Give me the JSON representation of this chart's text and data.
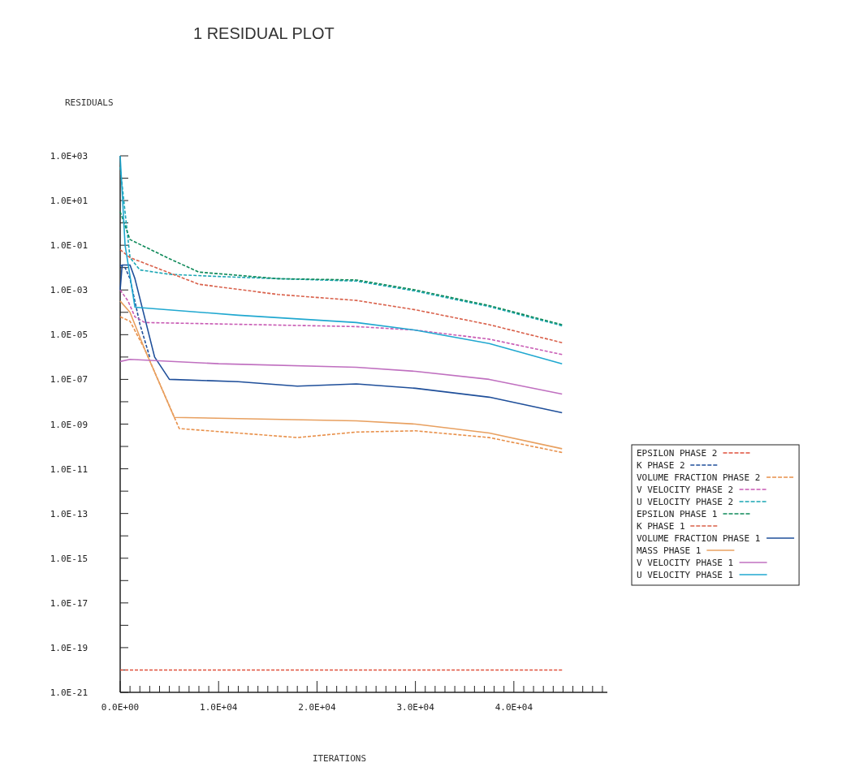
{
  "chart_data": {
    "type": "line",
    "title": "1 RESIDUAL PLOT",
    "xlabel": "ITERATIONS",
    "ylabel": "RESIDUALS",
    "log": "y",
    "legend": "right",
    "marker": "none",
    "grid": false,
    "xlim": [
      0,
      49500
    ],
    "xticks": [
      {
        "value": 0,
        "label": "0.0E+00"
      },
      {
        "value": 1000,
        "label": null
      },
      {
        "value": 2000,
        "label": null
      },
      {
        "value": 3000,
        "label": null
      },
      {
        "value": 4000,
        "label": null
      },
      {
        "value": 5000,
        "label": null
      },
      {
        "value": 6000,
        "label": null
      },
      {
        "value": 7000,
        "label": null
      },
      {
        "value": 8000,
        "label": null
      },
      {
        "value": 9000,
        "label": null
      },
      {
        "value": 10000,
        "label": "1.0E+04"
      },
      {
        "value": 11000,
        "label": null
      },
      {
        "value": 12000,
        "label": null
      },
      {
        "value": 13000,
        "label": null
      },
      {
        "value": 14000,
        "label": null
      },
      {
        "value": 15000,
        "label": null
      },
      {
        "value": 16000,
        "label": null
      },
      {
        "value": 17000,
        "label": null
      },
      {
        "value": 18000,
        "label": null
      },
      {
        "value": 19000,
        "label": null
      },
      {
        "value": 20000,
        "label": "2.0E+04"
      },
      {
        "value": 21000,
        "label": null
      },
      {
        "value": 22000,
        "label": null
      },
      {
        "value": 23000,
        "label": null
      },
      {
        "value": 24000,
        "label": null
      },
      {
        "value": 25000,
        "label": null
      },
      {
        "value": 26000,
        "label": null
      },
      {
        "value": 27000,
        "label": null
      },
      {
        "value": 28000,
        "label": null
      },
      {
        "value": 29000,
        "label": null
      },
      {
        "value": 30000,
        "label": "3.0E+04"
      },
      {
        "value": 31000,
        "label": null
      },
      {
        "value": 32000,
        "label": null
      },
      {
        "value": 33000,
        "label": null
      },
      {
        "value": 34000,
        "label": null
      },
      {
        "value": 35000,
        "label": null
      },
      {
        "value": 36000,
        "label": null
      },
      {
        "value": 37000,
        "label": null
      },
      {
        "value": 38000,
        "label": null
      },
      {
        "value": 39000,
        "label": null
      },
      {
        "value": 40000,
        "label": "4.0E+04"
      },
      {
        "value": 41000,
        "label": null
      },
      {
        "value": 42000,
        "label": null
      },
      {
        "value": 43000,
        "label": null
      },
      {
        "value": 44000,
        "label": null
      },
      {
        "value": 45000,
        "label": null
      },
      {
        "value": 46000,
        "label": null
      },
      {
        "value": 47000,
        "label": null
      },
      {
        "value": 48000,
        "label": null
      },
      {
        "value": 49000,
        "label": null
      }
    ],
    "ylim": [
      1e-21,
      1000
    ],
    "yticks": [
      {
        "value": 1e-21,
        "label": "1.0E-21"
      },
      {
        "value": 1e-20,
        "label": null
      },
      {
        "value": 1e-19,
        "label": "1.0E-19"
      },
      {
        "value": 1e-18,
        "label": null
      },
      {
        "value": 1e-17,
        "label": "1.0E-17"
      },
      {
        "value": 1e-16,
        "label": null
      },
      {
        "value": 1e-15,
        "label": "1.0E-15"
      },
      {
        "value": 1e-14,
        "label": null
      },
      {
        "value": 1e-13,
        "label": "1.0E-13"
      },
      {
        "value": 1e-12,
        "label": null
      },
      {
        "value": 1e-11,
        "label": "1.0E-11"
      },
      {
        "value": 1e-10,
        "label": null
      },
      {
        "value": 1e-09,
        "label": "1.0E-09"
      },
      {
        "value": 1e-08,
        "label": null
      },
      {
        "value": 1e-07,
        "label": "1.0E-07"
      },
      {
        "value": 1e-06,
        "label": null
      },
      {
        "value": 1e-05,
        "label": "1.0E-05"
      },
      {
        "value": 0.0001,
        "label": null
      },
      {
        "value": 0.001,
        "label": "1.0E-03"
      },
      {
        "value": 0.01,
        "label": null
      },
      {
        "value": 0.1,
        "label": "1.0E-01"
      },
      {
        "value": 1,
        "label": null
      },
      {
        "value": 10,
        "label": "1.0E+01"
      },
      {
        "value": 100,
        "label": null
      },
      {
        "value": 1000,
        "label": "1.0E+03"
      }
    ],
    "series": [
      {
        "name": "EPSILON PHASE 2",
        "color": "#e0503c",
        "line_style": "dashed",
        "x": [
          0,
          44900
        ],
        "values": [
          1e-20,
          1e-20
        ]
      },
      {
        "name": "K PHASE 2",
        "color": "#1f4f9a",
        "line_style": "dashed",
        "x": [
          0,
          500,
          1000,
          2000,
          3000
        ],
        "values": [
          0.013,
          0.01,
          0.0032,
          3e-05,
          1e-06
        ]
      },
      {
        "name": "VOLUME FRACTION PHASE 2",
        "color": "#e8904a",
        "line_style": "dashed",
        "x": [
          0,
          1000,
          2500,
          6000,
          18000,
          24000,
          30000,
          37500,
          44900
        ],
        "values": [
          6.3e-05,
          4e-05,
          2.2e-06,
          6.3e-10,
          2.5e-10,
          4.4e-10,
          5e-10,
          2.5e-10,
          5.4e-11
        ]
      },
      {
        "name": "V VELOCITY PHASE 2",
        "color": "#c85ab4",
        "line_style": "dashed",
        "x": [
          0,
          800,
          1500,
          2500,
          24000,
          30000,
          37500,
          44900
        ],
        "values": [
          0.001,
          0.00032,
          6.3e-05,
          3.5e-05,
          2.3e-05,
          1.6e-05,
          6.3e-06,
          1.3e-06
        ]
      },
      {
        "name": "U VELOCITY PHASE 2",
        "color": "#1aa6b4",
        "line_style": "dashed",
        "x": [
          0,
          1000,
          2000,
          5000,
          10000,
          16000,
          24000,
          30000,
          37500,
          44900
        ],
        "values": [
          316,
          0.028,
          0.0079,
          0.005,
          0.004,
          0.0032,
          0.0025,
          0.00089,
          0.00018,
          2.5e-05
        ]
      },
      {
        "name": "EPSILON PHASE 1",
        "color": "#0f8a5a",
        "line_style": "dashed",
        "x": [
          0,
          1000,
          5000,
          8000,
          16000,
          24000,
          30000,
          37500,
          44900
        ],
        "values": [
          3.2,
          0.18,
          0.025,
          0.0063,
          0.0032,
          0.0028,
          0.001,
          0.0002,
          2.8e-05
        ]
      },
      {
        "name": "K PHASE 1",
        "color": "#d9604a",
        "line_style": "dashed",
        "x": [
          0,
          1000,
          8000,
          16000,
          24000,
          30000,
          37500,
          44900
        ],
        "values": [
          0.063,
          0.028,
          0.0018,
          0.00063,
          0.00034,
          0.00013,
          2.8e-05,
          4.4e-06
        ]
      },
      {
        "name": "VOLUME FRACTION PHASE 1",
        "color": "#1f4f9a",
        "line_style": "solid",
        "x": [
          0,
          200,
          1000,
          1500,
          3500,
          5000,
          12000,
          18000,
          24000,
          30000,
          37500,
          44900
        ],
        "values": [
          0.001,
          0.013,
          0.013,
          0.0032,
          1e-06,
          1e-07,
          7.9e-08,
          5e-08,
          6.3e-08,
          4e-08,
          1.6e-08,
          3.2e-09
        ]
      },
      {
        "name": "MASS PHASE 1",
        "color": "#e8a060",
        "line_style": "solid",
        "x": [
          0,
          1000,
          2500,
          5500,
          24000,
          30000,
          37500,
          44900
        ],
        "values": [
          0.00032,
          0.0001,
          2.2e-06,
          2e-09,
          1.4e-09,
          1e-09,
          4e-10,
          7.9e-11
        ]
      },
      {
        "name": "V VELOCITY PHASE 1",
        "color": "#c070c0",
        "line_style": "solid",
        "x": [
          0,
          1000,
          10000,
          24000,
          30000,
          37500,
          44900
        ],
        "values": [
          6.3e-07,
          7.9e-07,
          5e-07,
          3.5e-07,
          2.3e-07,
          1e-07,
          2.2e-08
        ]
      },
      {
        "name": "U VELOCITY PHASE 1",
        "color": "#20a8d0",
        "line_style": "solid",
        "x": [
          0,
          500,
          1500,
          12000,
          24000,
          30000,
          37500,
          44900
        ],
        "values": [
          1000,
          0.1,
          0.00017,
          7.4e-05,
          3.5e-05,
          1.6e-05,
          4e-06,
          5e-07
        ]
      }
    ]
  }
}
